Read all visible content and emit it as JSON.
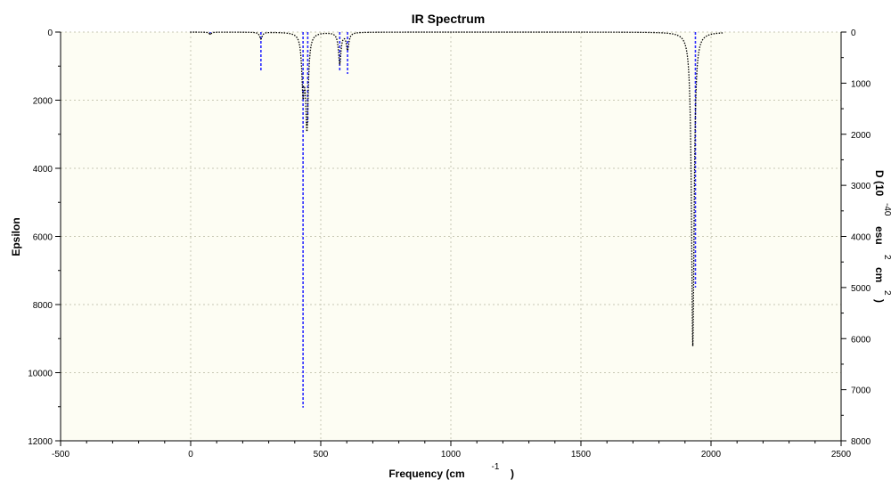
{
  "chart_data": {
    "type": "line",
    "title": "IR Spectrum",
    "xlabel": "Frequency (cm",
    "xlabel_sup": "-1",
    "xlabel_close": ")",
    "ylabel": "Epsilon",
    "y2label_parts": [
      "D (10",
      "-40",
      "esu",
      "2",
      "cm",
      "2",
      ")"
    ],
    "xlim": [
      -500,
      2500
    ],
    "ylim": [
      0,
      12000
    ],
    "y2lim": [
      0,
      8000
    ],
    "x_ticks": [
      -500,
      0,
      500,
      1000,
      1500,
      2000,
      2500
    ],
    "y_ticks": [
      0,
      2000,
      4000,
      6000,
      8000,
      10000,
      12000
    ],
    "y2_ticks": [
      0,
      1000,
      2000,
      3000,
      4000,
      5000,
      6000,
      7000,
      8000
    ],
    "y_inverted": true,
    "grid": true,
    "colors": {
      "plot_background": "#fdfdf3",
      "grid": "#c8c8b4",
      "spectrum": "#000000",
      "sticks": "#2a2aff"
    },
    "series": [
      {
        "style": "dotted-line",
        "peaks": [
          {
            "x": 75,
            "y": 60
          },
          {
            "x": 270,
            "y": 200
          },
          {
            "x": 432,
            "y": 1600
          },
          {
            "x": 447,
            "y": 2700
          },
          {
            "x": 573,
            "y": 900
          },
          {
            "x": 603,
            "y": 500
          },
          {
            "x": 1930,
            "y": 9200
          }
        ]
      },
      {
        "style": "sticks",
        "sticks": [
          {
            "x": 75,
            "y": 20
          },
          {
            "x": 270,
            "y": 770
          },
          {
            "x": 432,
            "y": 7350
          },
          {
            "x": 450,
            "y": 1760
          },
          {
            "x": 573,
            "y": 760
          },
          {
            "x": 603,
            "y": 820
          },
          {
            "x": 1940,
            "y": 5000
          }
        ]
      }
    ]
  }
}
